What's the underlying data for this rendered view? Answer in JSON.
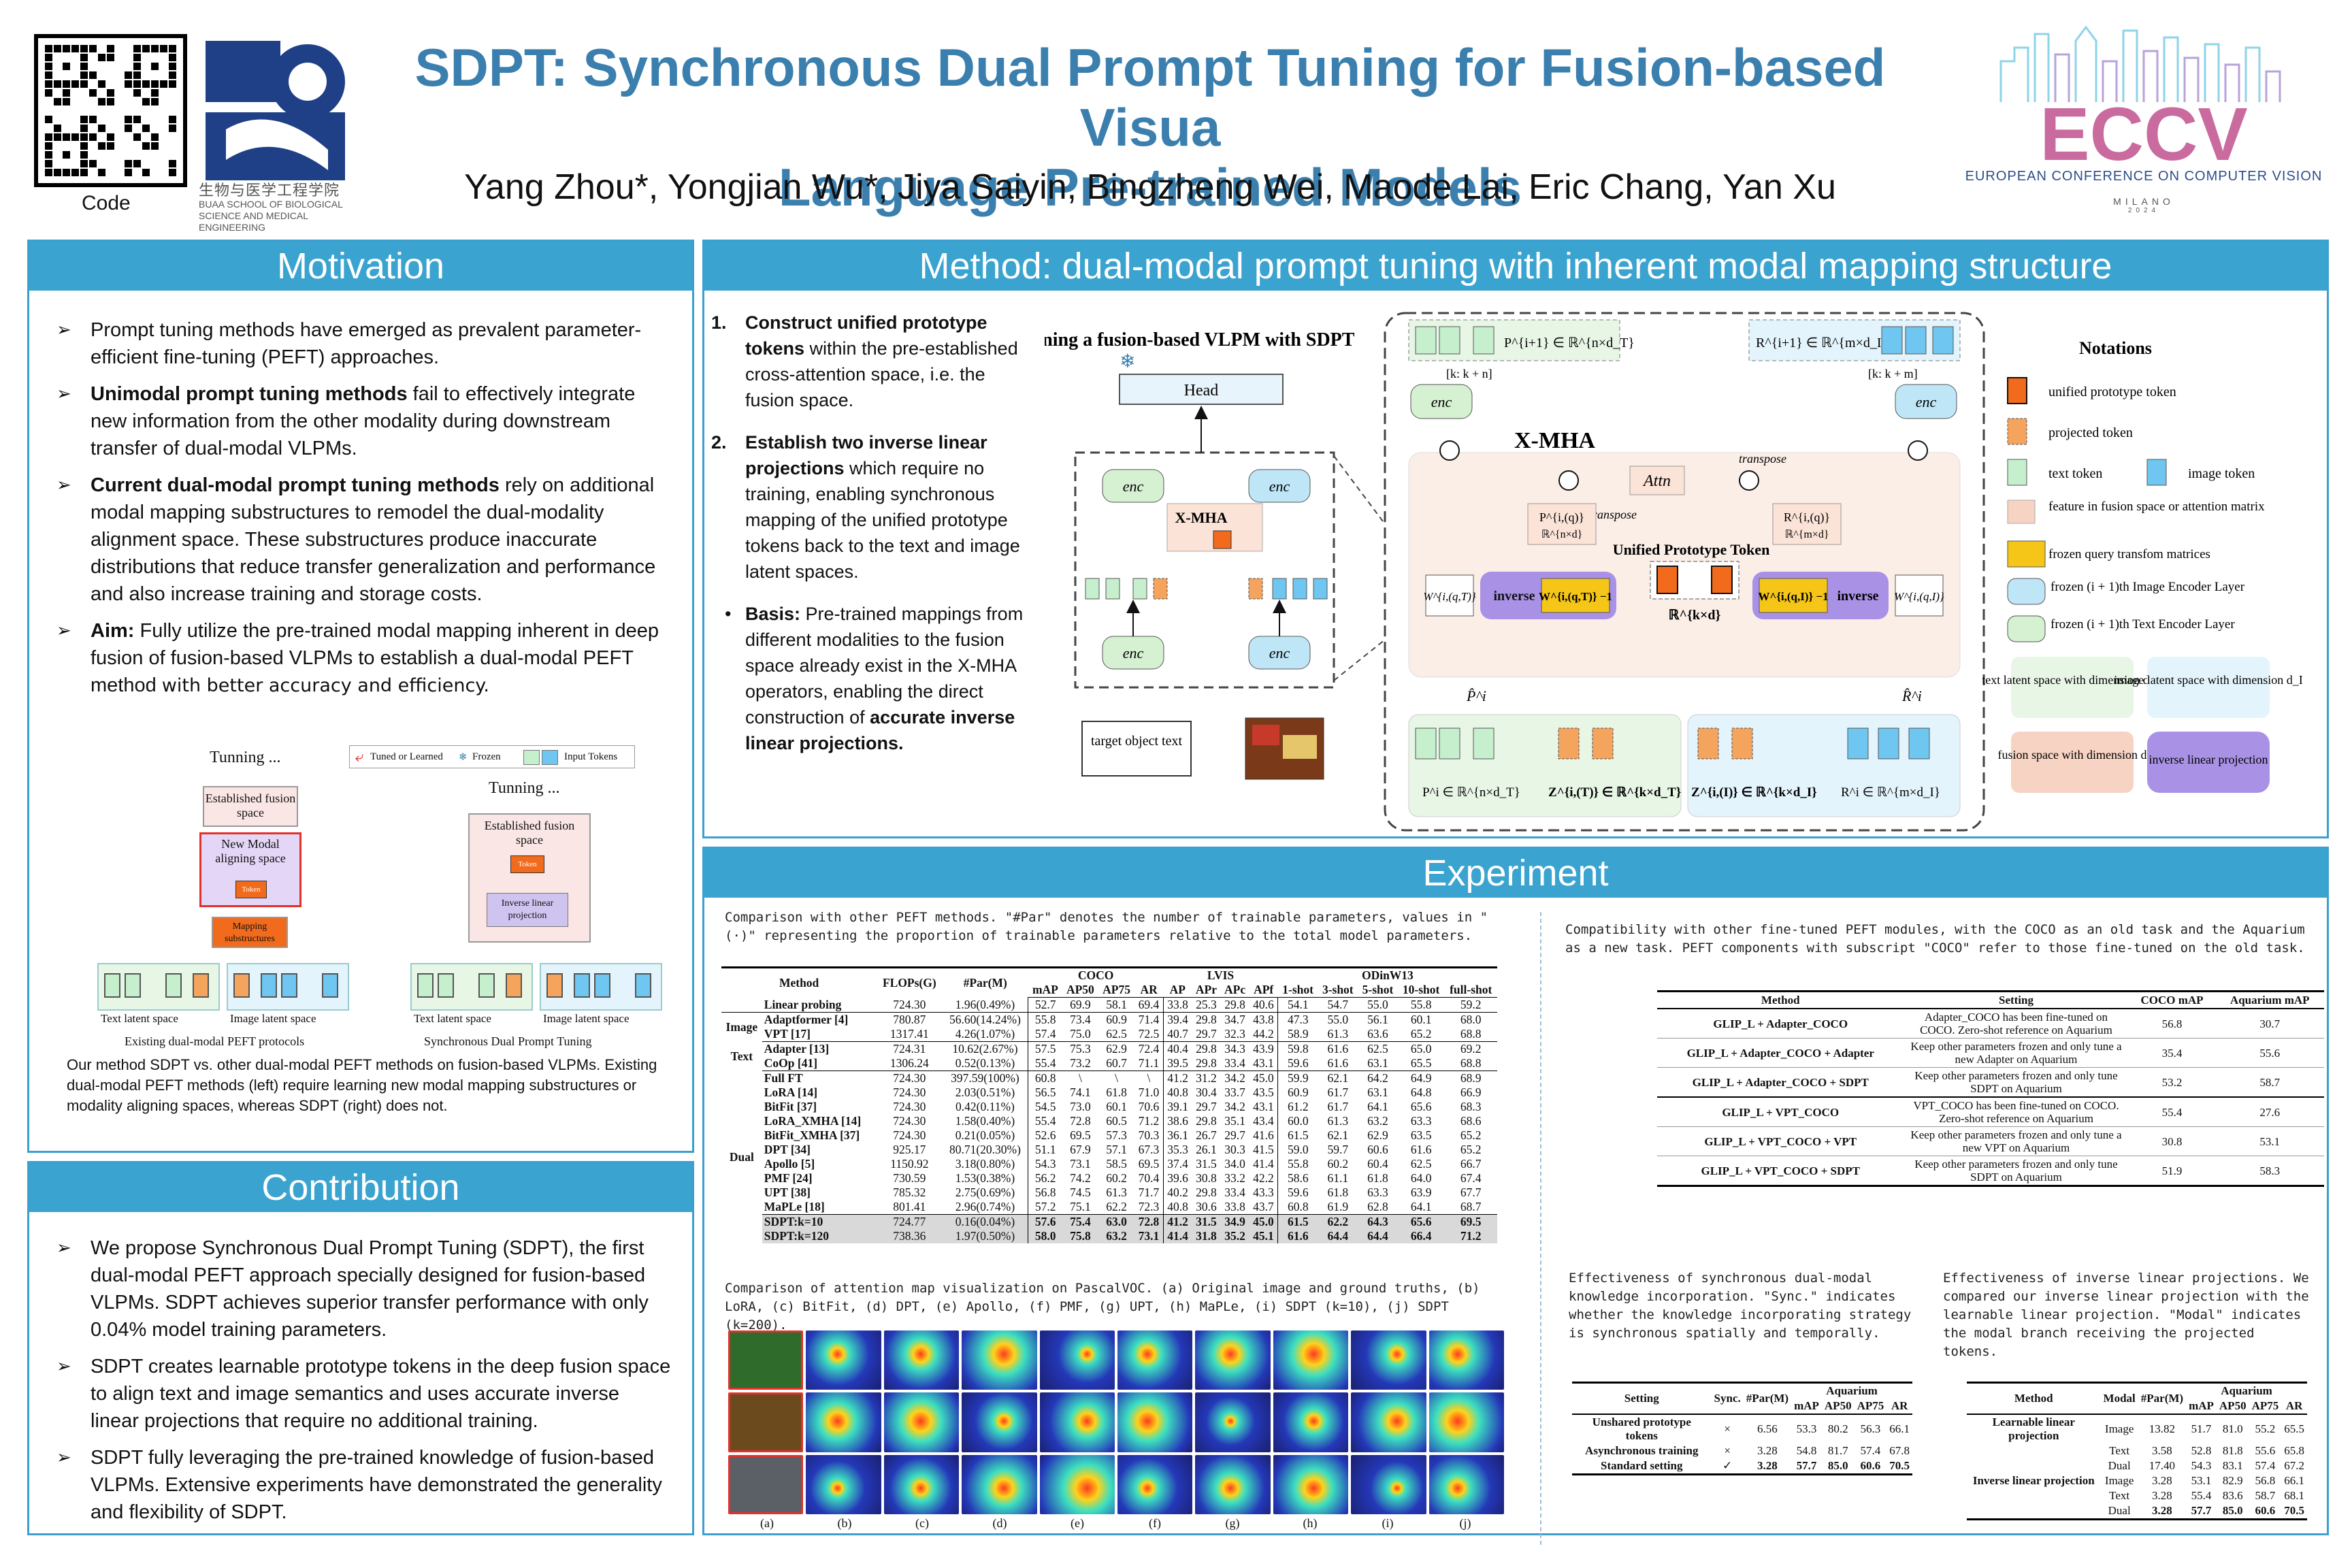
{
  "header": {
    "qr_label": "Code",
    "inst_cn": "生物与医学工程学院",
    "inst_en": "BUAA SCHOOL OF BIOLOGICAL SCIENCE AND MEDICAL ENGINEERING",
    "title_line1": "SDPT: Synchronous Dual Prompt Tuning for Fusion-based Visua",
    "title_line2": "Language Pre-trained Models",
    "authors": "Yang Zhou*, Yongjian Wu*, Jiya Saiyin, Bingzheng Wei, Maode Lai, Eric Chang, Yan Xu",
    "conf_logo": "ECCV",
    "conf_name": "EUROPEAN CONFERENCE ON COMPUTER VISION",
    "conf_city": "MILANO",
    "conf_year": "2024"
  },
  "motivation": {
    "heading": "Motivation",
    "b1": "Prompt tuning methods have emerged as prevalent parameter-efficient fine-tuning (PEFT) approaches.",
    "b2_bold": "Unimodal prompt tuning methods",
    "b2_rest": " fail to effectively integrate new information from the other modality during downstream transfer of dual-modal VLPMs.",
    "b3_bold": "Current dual-modal prompt tuning methods",
    "b3_rest": " rely on additional modal mapping substructures to remodel the dual-modality alignment space. These substructures produce inaccurate distributions that reduce transfer generalization and performance and also increase training and storage costs.",
    "b4_bold": "Aim:",
    "b4_rest": " Fully utilize the pre-trained modal mapping inherent in deep fusion of fusion-based VLPMs to establish a dual-modal PEFT method ",
    "b4_tail": "with better accuracy and efficiency.",
    "fig": {
      "legend_tuned": "Tuned or Learned",
      "legend_frozen": "Frozen",
      "legend_input": "Input Tokens",
      "left_title": "Tunning ...",
      "left_established": "Established fusion space",
      "left_new": "New Modal aligning space",
      "left_token": "Token",
      "left_mapping": "Mapping substructures",
      "left_text": "Text latent space",
      "left_image": "Image latent space",
      "left_caption": "Existing dual-modal PEFT protocols",
      "right_title": "Tunning ...",
      "right_established": "Established fusion space",
      "right_token": "Token",
      "right_inverse": "Inverse linear projection",
      "right_text": "Text latent space",
      "right_image": "Image latent space",
      "right_caption": "Synchronous Dual Prompt Tuning"
    },
    "caption": "Our method SDPT vs. other dual-modal PEFT methods on fusion-based VLPMs. Existing dual-modal PEFT methods (left) require learning new modal mapping substructures or modality aligning spaces, whereas SDPT (right) does not."
  },
  "contribution": {
    "heading": "Contribution",
    "b1": "We propose Synchronous Dual Prompt Tuning (SDPT), the first dual-modal PEFT approach specially designed for fusion-based VLPMs. SDPT achieves superior transfer performance with only 0.04% model training parameters.",
    "b2": "SDPT creates learnable prototype tokens in the deep fusion space to align text and image semantics and uses accurate inverse linear projections that require no additional training.",
    "b3": "SDPT fully leveraging the pre-trained knowledge of fusion-based VLPMs. Extensive experiments have demonstrated the generality and flexibility of SDPT."
  },
  "method": {
    "heading": "Method: dual-modal prompt tuning with inherent modal mapping structure",
    "s1_num": "1.",
    "s1_bold": "Construct unified prototype tokens",
    "s1_rest": " within the pre-established cross-attention space, i.e. the fusion space.",
    "s2_num": "2.",
    "s2_bold": "Establish two inverse linear projections",
    "s2_rest": " which require no training, enabling synchronous mapping of the unified prototype tokens back to the text and image latent spaces.",
    "s3_bold": "Basis:",
    "s3_rest": " Pre-trained mappings from different modalities to the fusion space already exist in the X-MHA operators, enabling the direct construction of ",
    "s3_tail": "accurate inverse linear projections.",
    "diagram": {
      "title": "Tuning a fusion-based VLPM with SDPT",
      "head": "Head",
      "xmha": "X-MHA",
      "xmha_big": "X-MHA",
      "attn": "Attn",
      "transpose1": "transpose",
      "transpose2": "transpose",
      "enc_t_next": "enc",
      "enc_i_next": "enc",
      "enc_t": "enc",
      "enc_i": "enc",
      "target_text": "target object text",
      "upt": "Unified Prototype Token",
      "inverse1": "inverse",
      "inverse2": "inverse",
      "p_next": "P^{i+1} ∈ ℝ^{n×d_T}",
      "r_next": "R^{i+1} ∈ ℝ^{m×d_I}",
      "k_range1": "[k: k + n]",
      "k_range2": "[k: k + m]",
      "p_in": "P^i ∈ ℝ^{n×d_T}",
      "z_t": "Z^{i,(T)} ∈ ℝ^{k×d_T}",
      "z_i": "Z^{i,(I)} ∈ ℝ^{k×d_I}",
      "r_in": "R^i ∈ ℝ^{m×d_I}",
      "p_hat": "P̂^i",
      "r_hat": "R̂^i",
      "p_proj": "P^{i,(q)}",
      "r_proj": "R^{i,(q)}",
      "rnd": "ℝ^{n×d}",
      "rmd": "ℝ^{m×d}",
      "rkd": "ℝ^{k×d}",
      "w_t": "W^{i,(q,T)}",
      "w_i": "W^{i,(q,I)}",
      "w_t_inv": "W^{i,(q,T)} −1",
      "w_i_inv": "W^{i,(q,I)} −1"
    },
    "notations": {
      "title": "Notations",
      "n1": "unified prototype token",
      "n2": "projected token",
      "n3": "text token",
      "n4": "image token",
      "n5": "feature in fusion space or attention matrix",
      "n6": "frozen query transfom matrices",
      "n7": "frozen (i + 1)th Image Encoder Layer",
      "n8": "frozen (i + 1)th Text Encoder Layer",
      "box1": "text latent space with dimension d_T",
      "box2": "image latent space with dimension d_I",
      "box3": "fusion space with dimension d",
      "box4": "inverse linear projection"
    }
  },
  "experiment": {
    "heading": "Experiment",
    "t1_caption": "Comparison with other PEFT methods. \"#Par\" denotes the number of trainable parameters, values in \"(·)\" representing the proportion of trainable parameters relative to the total model parameters.",
    "t1_headers": {
      "method": "Method",
      "flops": "FLOPs(G)",
      "par": "#Par(M)",
      "coco": "COCO",
      "lvis": "LVIS",
      "odinw": "ODinW13",
      "coco_cols": [
        "mAP",
        "AP50",
        "AP75",
        "AR"
      ],
      "lvis_cols": [
        "AP",
        "APr",
        "APc",
        "APf"
      ],
      "odinw_cols": [
        "1-shot",
        "3-shot",
        "5-shot",
        "10-shot",
        "full-shot"
      ]
    },
    "t1_groups": {
      "image": "Image",
      "text": "Text",
      "dual": "Dual"
    },
    "t1_rows": [
      [
        "",
        "Linear probing",
        "724.30",
        "1.96(0.49%)",
        "52.7",
        "69.9",
        "58.1",
        "69.4",
        "33.8",
        "25.3",
        "29.8",
        "40.6",
        "54.1",
        "54.7",
        "55.0",
        "55.8",
        "59.2"
      ],
      [
        "Image",
        "Adaptformer [4]",
        "780.87",
        "56.60(14.24%)",
        "55.8",
        "73.4",
        "60.9",
        "71.4",
        "39.4",
        "29.8",
        "34.7",
        "43.8",
        "47.3",
        "55.0",
        "56.1",
        "60.1",
        "68.0"
      ],
      [
        "",
        "VPT [17]",
        "1317.41",
        "4.26(1.07%)",
        "57.4",
        "75.0",
        "62.5",
        "72.5",
        "40.7",
        "29.7",
        "32.3",
        "44.2",
        "58.9",
        "61.3",
        "63.6",
        "65.2",
        "68.8"
      ],
      [
        "Text",
        "Adapter [13]",
        "724.31",
        "10.62(2.67%)",
        "57.5",
        "75.3",
        "62.9",
        "72.4",
        "40.4",
        "29.8",
        "34.3",
        "43.9",
        "59.8",
        "61.6",
        "62.5",
        "65.0",
        "69.2"
      ],
      [
        "",
        "CoOp [41]",
        "1306.24",
        "0.52(0.13%)",
        "55.4",
        "73.2",
        "60.7",
        "71.1",
        "39.5",
        "29.8",
        "33.4",
        "43.1",
        "59.6",
        "61.6",
        "63.1",
        "65.5",
        "68.8"
      ],
      [
        "Dual",
        "Full FT",
        "724.30",
        "397.59(100%)",
        "60.8",
        "\\",
        "\\",
        "\\",
        "41.2",
        "31.2",
        "34.2",
        "45.0",
        "59.9",
        "62.1",
        "64.2",
        "64.9",
        "68.9"
      ],
      [
        "",
        "LoRA [14]",
        "724.30",
        "2.03(0.51%)",
        "56.5",
        "74.1",
        "61.8",
        "71.0",
        "40.8",
        "30.4",
        "33.7",
        "43.5",
        "60.9",
        "61.7",
        "63.1",
        "64.8",
        "66.9"
      ],
      [
        "",
        "BitFit [37]",
        "724.30",
        "0.42(0.11%)",
        "54.5",
        "73.0",
        "60.1",
        "70.6",
        "39.1",
        "29.7",
        "34.2",
        "43.1",
        "61.2",
        "61.7",
        "64.1",
        "65.6",
        "68.3"
      ],
      [
        "",
        "LoRA_XMHA [14]",
        "724.30",
        "1.58(0.40%)",
        "55.4",
        "72.8",
        "60.5",
        "71.2",
        "38.6",
        "29.8",
        "35.1",
        "43.4",
        "60.0",
        "61.3",
        "63.2",
        "63.3",
        "68.6"
      ],
      [
        "",
        "BitFit_XMHA [37]",
        "724.30",
        "0.21(0.05%)",
        "52.6",
        "69.5",
        "57.3",
        "70.3",
        "36.1",
        "26.7",
        "29.7",
        "41.6",
        "61.5",
        "62.1",
        "62.9",
        "63.5",
        "65.2"
      ],
      [
        "",
        "DPT [34]",
        "925.17",
        "80.71(20.30%)",
        "51.1",
        "67.9",
        "57.1",
        "67.3",
        "35.3",
        "26.1",
        "30.3",
        "41.5",
        "59.0",
        "59.7",
        "60.6",
        "61.6",
        "65.2"
      ],
      [
        "",
        "Apollo [5]",
        "1150.92",
        "3.18(0.80%)",
        "54.3",
        "73.1",
        "58.5",
        "69.5",
        "37.4",
        "31.5",
        "34.0",
        "41.4",
        "55.8",
        "60.2",
        "60.4",
        "62.5",
        "66.7"
      ],
      [
        "",
        "PMF [24]",
        "730.59",
        "1.53(0.38%)",
        "56.2",
        "74.2",
        "60.2",
        "70.4",
        "39.6",
        "30.8",
        "33.2",
        "42.2",
        "58.6",
        "61.1",
        "61.8",
        "64.0",
        "67.4"
      ],
      [
        "",
        "UPT [38]",
        "785.32",
        "2.75(0.69%)",
        "56.8",
        "74.5",
        "61.3",
        "71.7",
        "40.2",
        "29.8",
        "33.4",
        "43.3",
        "59.6",
        "61.8",
        "63.3",
        "63.9",
        "67.7"
      ],
      [
        "",
        "MaPLe [18]",
        "801.41",
        "2.96(0.74%)",
        "57.2",
        "75.1",
        "62.2",
        "72.3",
        "40.8",
        "30.6",
        "33.8",
        "43.7",
        "60.8",
        "61.9",
        "62.8",
        "64.1",
        "68.7"
      ],
      [
        "",
        "SDPT:k=10",
        "724.77",
        "0.16(0.04%)",
        "57.6",
        "75.4",
        "63.0",
        "72.8",
        "41.2",
        "31.5",
        "34.9",
        "45.0",
        "61.5",
        "62.2",
        "64.3",
        "65.6",
        "69.5"
      ],
      [
        "",
        "SDPT:k=120",
        "738.36",
        "1.97(0.50%)",
        "58.0",
        "75.8",
        "63.2",
        "73.1",
        "41.4",
        "31.8",
        "35.2",
        "45.1",
        "61.6",
        "64.4",
        "64.4",
        "66.4",
        "71.2"
      ]
    ],
    "attn_caption": "Comparison of attention map visualization on PascalVOC. (a) Original image and ground truths, (b) LoRA, (c) BitFit, (d) DPT, (e) Apollo, (f) PMF, (g) UPT, (h) MaPLe, (i) SDPT (k=10), (j) SDPT (k=200).",
    "attn_labels": [
      "(a)",
      "(b)",
      "(c)",
      "(d)",
      "(e)",
      "(f)",
      "(g)",
      "(h)",
      "(i)",
      "(j)"
    ],
    "t2_caption": "Compatibility with other fine-tuned PEFT modules, with the COCO as an old task and the Aquarium as a new task. PEFT components with subscript \"COCO\" refer to those fine-tuned on the old task.",
    "t2_headers": [
      "Method",
      "Setting",
      "COCO mAP",
      "Aquarium mAP"
    ],
    "t2_rows": [
      [
        "GLIP_L + Adapter_COCO",
        "Adapter_COCO has been fine-tuned on COCO. Zero-shot reference on Aquarium",
        "56.8",
        "30.7"
      ],
      [
        "GLIP_L + Adapter_COCO + Adapter",
        "Keep other parameters frozen and only tune a new Adapter on Aquarium",
        "35.4",
        "55.6"
      ],
      [
        "GLIP_L + Adapter_COCO + SDPT",
        "Keep other parameters frozen and only tune SDPT on Aquarium",
        "53.2",
        "58.7"
      ],
      [
        "GLIP_L + VPT_COCO",
        "VPT_COCO has been fine-tuned on COCO. Zero-shot reference on Aquarium",
        "55.4",
        "27.6"
      ],
      [
        "GLIP_L + VPT_COCO + VPT",
        "Keep other parameters frozen and only tune a new VPT on Aquarium",
        "30.8",
        "53.1"
      ],
      [
        "GLIP_L + VPT_COCO + SDPT",
        "Keep other parameters frozen and only tune SDPT on Aquarium",
        "51.9",
        "58.3"
      ]
    ],
    "t3_caption": "Effectiveness of synchronous dual-modal knowledge incorporation. \"Sync.\" indicates whether the knowledge incorporating strategy is synchronous spatially and temporally.",
    "t3_headers": [
      "Setting",
      "Sync.",
      "#Par(M)",
      "Aquarium",
      "mAP",
      "AP50",
      "AP75",
      "AR"
    ],
    "t3_rows": [
      [
        "Unshared prototype tokens",
        "×",
        "6.56",
        "53.3",
        "80.2",
        "56.3",
        "66.1"
      ],
      [
        "Asynchronous training",
        "×",
        "3.28",
        "54.8",
        "81.7",
        "57.4",
        "67.8"
      ],
      [
        "Standard setting",
        "✓",
        "3.28",
        "57.7",
        "85.0",
        "60.6",
        "70.5"
      ]
    ],
    "t4_caption": "Effectiveness of inverse linear projections. We compared our inverse linear projection with the learnable linear projection. \"Modal\" indicates the modal branch receiving the projected tokens.",
    "t4_headers": [
      "Method",
      "Modal",
      "#Par(M)",
      "Aquarium",
      "mAP",
      "AP50",
      "AP75",
      "AR"
    ],
    "t4_rows": [
      [
        "Learnable linear projection",
        "Image",
        "13.82",
        "51.7",
        "81.0",
        "55.2",
        "65.5"
      ],
      [
        "",
        "Text",
        "3.58",
        "52.8",
        "81.8",
        "55.6",
        "65.8"
      ],
      [
        "",
        "Dual",
        "17.40",
        "54.3",
        "83.1",
        "57.4",
        "67.2"
      ],
      [
        "Inverse linear projection",
        "Image",
        "3.28",
        "53.1",
        "82.9",
        "56.8",
        "66.1"
      ],
      [
        "",
        "Text",
        "3.28",
        "55.4",
        "83.6",
        "58.7",
        "68.1"
      ],
      [
        "",
        "Dual",
        "3.28",
        "57.7",
        "85.0",
        "60.6",
        "70.5"
      ]
    ]
  },
  "colors": {
    "accent": "#3aa3cf",
    "title": "#3a7fae",
    "text_token": "#c6efce",
    "image_token": "#6fc6f0",
    "prototype_token": "#f26b1d",
    "fusion_space": "#f6d3c3",
    "inverse_projection": "#a992e6"
  }
}
